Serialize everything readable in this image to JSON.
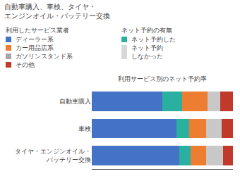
{
  "chart_data": {
    "type": "bar",
    "orientation": "horizontal",
    "stacked": true,
    "title": "自動車購入、車検、タイヤ・\nエンジンオイル・バッテリー交換",
    "subtitle": "利用サービス別のネット予約率",
    "categories": [
      "タイヤ・エンジンオイル・\nバッテリー交換",
      "車検",
      "自動車購入"
    ],
    "series": [
      {
        "color": "#4472c4",
        "values": [
          0.62,
          0.6,
          0.5
        ]
      },
      {
        "color": "#2ab0a0",
        "values": [
          0.08,
          0.09,
          0.14
        ]
      },
      {
        "color": "#ed7d31",
        "values": [
          0.11,
          0.12,
          0.18
        ]
      },
      {
        "color": "#c8c8c8",
        "values": [
          0.12,
          0.11,
          0.09
        ]
      },
      {
        "color": "#c0392b",
        "values": [
          0.07,
          0.08,
          0.09
        ]
      }
    ],
    "xlim": [
      0,
      1
    ],
    "tick_labels": "y",
    "grid": false,
    "legends": [
      {
        "title": "利用したサービス業者",
        "items": [
          {
            "label": "ディーラー系",
            "color": "#4472c4"
          },
          {
            "label": "カー用品店系",
            "color": "#ed7d31"
          },
          {
            "label": "ガソリンスタンド系",
            "color": "#a5a5a5"
          },
          {
            "label": "その他",
            "color": "#c0392b"
          }
        ]
      },
      {
        "title": "ネット予約の有無",
        "items": [
          {
            "label": "ネット予約した",
            "color": "#2ab0a0"
          },
          {
            "label": "ネット予約\nしなかった",
            "color": "#d8d8d8"
          }
        ]
      }
    ]
  }
}
